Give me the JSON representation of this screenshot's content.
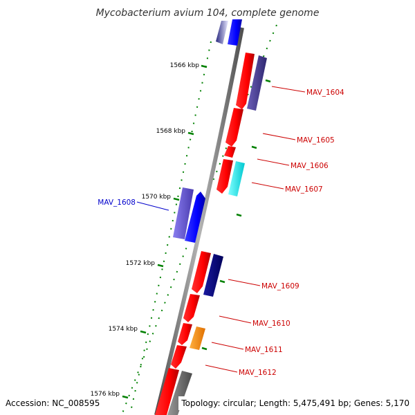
{
  "title": "Mycobacterium avium 104, complete genome",
  "footer": {
    "accession": "Accession: NC_008595",
    "summary": "Topology: circular; Length: 5,475,491 bp; Genes: 5,170"
  },
  "tick_labels": [
    "1566 kbp",
    "1568 kbp",
    "1570 kbp",
    "1572 kbp",
    "1574 kbp",
    "1576 kbp"
  ],
  "gene_labels": [
    {
      "text": "MAV_1604",
      "color": "#cc0000"
    },
    {
      "text": "MAV_1605",
      "color": "#cc0000"
    },
    {
      "text": "MAV_1606",
      "color": "#cc0000"
    },
    {
      "text": "MAV_1607",
      "color": "#cc0000"
    },
    {
      "text": "MAV_1608",
      "color": "#0000cc"
    },
    {
      "text": "MAV_1609",
      "color": "#cc0000"
    },
    {
      "text": "MAV_1610",
      "color": "#cc0000"
    },
    {
      "text": "MAV_1611",
      "color": "#cc0000"
    },
    {
      "text": "MAV_1612",
      "color": "#cc0000"
    }
  ],
  "colors": {
    "backbone": "#808080",
    "tick": "#008000",
    "red_gene": "#ff0000",
    "blue_gene": "#0000ff",
    "navy_gene": "#000080",
    "slate_gene": "#483d8b",
    "violet_gene": "#6a5acd",
    "cyan_gene": "#00ffff",
    "orange_gene": "#ff8c00",
    "gray_gene": "#696969"
  }
}
